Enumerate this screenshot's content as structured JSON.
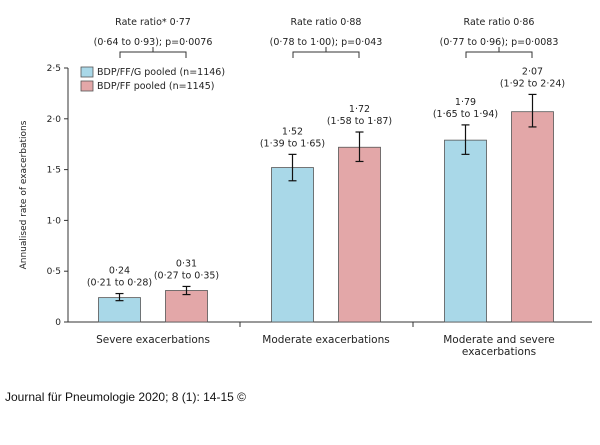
{
  "chart_data": {
    "type": "bar",
    "ylabel": "Annualised rate of exacerbations",
    "ylim": [
      0,
      2.5
    ],
    "yticks": [
      "0",
      "0·5",
      "1·0",
      "1·5",
      "2·0",
      "2·5"
    ],
    "yticks_values": [
      0,
      0.5,
      1.0,
      1.5,
      2.0,
      2.5
    ],
    "categories": [
      "Severe exacerbations",
      "Moderate exacerbations",
      "Moderate and severe exacerbations"
    ],
    "category_lines": [
      [
        "Severe exacerbations"
      ],
      [
        "Moderate exacerbations"
      ],
      [
        "Moderate and severe",
        "exacerbations"
      ]
    ],
    "series": [
      {
        "name": "BDP/FF/G pooled (n=1146)",
        "color": "#a9d8e8",
        "values": [
          0.24,
          1.52,
          1.79
        ],
        "ci_low": [
          0.21,
          1.39,
          1.65
        ],
        "ci_high": [
          0.28,
          1.65,
          1.94
        ],
        "label_value": [
          "0·24",
          "1·52",
          "1·79"
        ],
        "label_ci": [
          "(0·21 to 0·28)",
          "(1·39 to 1·65)",
          "(1·65 to 1·94)"
        ]
      },
      {
        "name": "BDP/FF pooled (n=1145)",
        "color": "#e3a7a8",
        "values": [
          0.31,
          1.72,
          2.07
        ],
        "ci_low": [
          0.27,
          1.58,
          1.92
        ],
        "ci_high": [
          0.35,
          1.87,
          2.24
        ],
        "label_value": [
          "0·31",
          "1·72",
          "2·07"
        ],
        "label_ci": [
          "(0·27 to 0·35)",
          "(1·58 to 1·87)",
          "(1·92 to 2·24)"
        ]
      }
    ],
    "comparisons": [
      {
        "title": "Rate ratio* 0·77",
        "detail": "(0·64 to 0·93); p=0·0076"
      },
      {
        "title": "Rate ratio 0·88",
        "detail": "(0·78 to 1·00); p=0·043"
      },
      {
        "title": "Rate ratio 0·86",
        "detail": "(0·77 to 0·96); p=0·0083"
      }
    ],
    "legend_position": "top-left"
  },
  "credit": "Journal für Pneumologie 2020; 8 (1): 14-15 ©"
}
